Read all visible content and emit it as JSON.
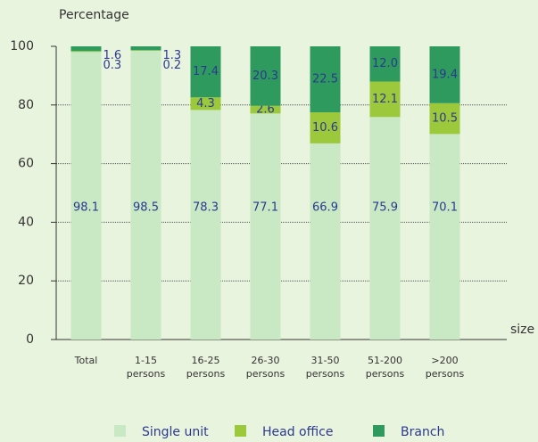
{
  "chart_data": {
    "type": "stacked_bar",
    "y_label": "Percentage",
    "x_label": "size",
    "categories": [
      "Total",
      "1-15 persons",
      "16-25 persons",
      "26-30 persons",
      "31-50 persons",
      "51-200 persons",
      ">200 persons"
    ],
    "series": [
      {
        "name": "Single unit",
        "color": "#c9e8c4",
        "values": [
          98.1,
          98.5,
          78.3,
          77.1,
          66.9,
          75.9,
          70.1
        ]
      },
      {
        "name": "Head office",
        "color": "#9cc83b",
        "values": [
          0.3,
          0.2,
          4.3,
          2.6,
          10.6,
          12.1,
          10.5
        ]
      },
      {
        "name": "Branch",
        "color": "#2e9a5e",
        "values": [
          1.6,
          1.3,
          17.4,
          20.3,
          22.5,
          12.0,
          19.4
        ],
        "value_labels": [
          "1.6",
          "1.3",
          "17.4",
          "20.3",
          "22.5",
          "12.0",
          "19.4"
        ]
      }
    ],
    "ylim": [
      0,
      100
    ],
    "yticks": [
      0,
      20,
      40,
      60,
      80,
      100
    ],
    "grid": true
  }
}
